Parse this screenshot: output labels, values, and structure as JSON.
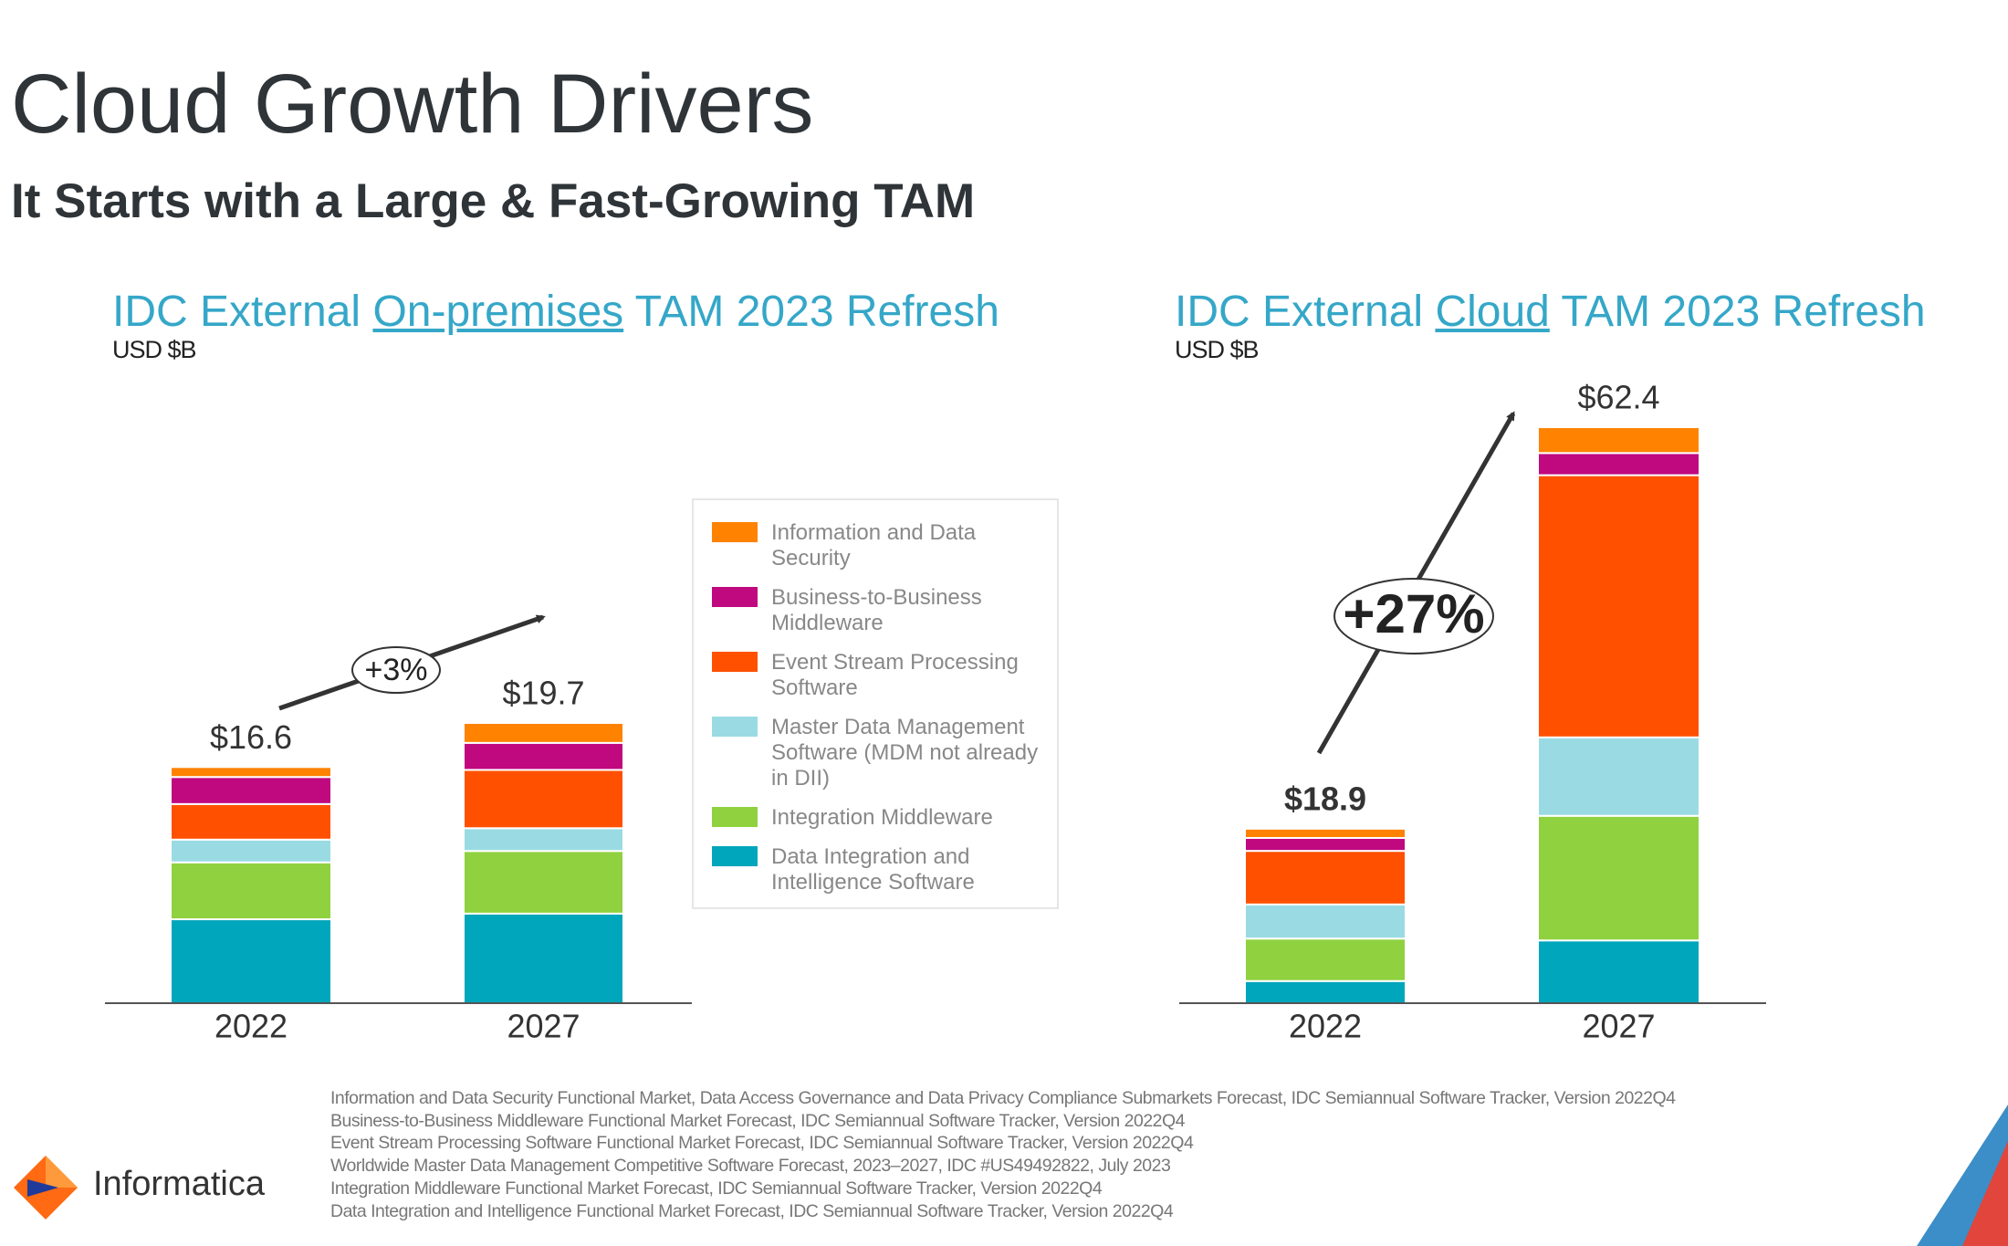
{
  "title": "Cloud Growth Drivers",
  "subtitle": "It Starts with a Large & Fast-Growing TAM",
  "logo": "Informatica",
  "footnotes": [
    "Information and Data Security Functional Market, Data Access Governance and Data Privacy Compliance Submarkets Forecast, IDC Semiannual Software Tracker, Version 2022Q4",
    "Business-to-Business Middleware Functional Market Forecast, IDC Semiannual Software Tracker, Version 2022Q4",
    "Event Stream Processing Software Functional Market Forecast, IDC Semiannual Software Tracker, Version 2022Q4",
    "Worldwide Master Data Management Competitive Software Forecast, 2023–2027, IDC #US49492822, July 2023",
    "Integration Middleware Functional Market Forecast, IDC Semiannual Software Tracker, Version 2022Q4",
    "Data Integration and Intelligence Functional Market Forecast, IDC Semiannual Software Tracker, Version 2022Q4"
  ],
  "chart_data": [
    {
      "type": "stacked_bar",
      "title_parts": [
        "IDC External",
        "On-premises",
        "TAM 2023 Refresh"
      ],
      "unit": "USD $B",
      "categories": [
        "2022",
        "2027"
      ],
      "totals": [
        16.6,
        19.7
      ],
      "total_labels": [
        "$16.6",
        "$19.7"
      ],
      "annotation": "+3%",
      "series": [
        {
          "name": "Data Integration and Intelligence Software",
          "color": "#00a6bb",
          "values": [
            5.9,
            6.3
          ]
        },
        {
          "name": "Integration Middleware",
          "color": "#8fd13f",
          "values": [
            4.0,
            4.4
          ]
        },
        {
          "name": "Master Data Management Software (MDM not already in DII)",
          "color": "#9adbe3",
          "values": [
            1.6,
            1.6
          ]
        },
        {
          "name": "Event Stream Processing Software",
          "color": "#ff5000",
          "values": [
            2.5,
            4.1
          ]
        },
        {
          "name": "Business-to-Business Middleware",
          "color": "#c0087f",
          "values": [
            1.9,
            1.9
          ]
        },
        {
          "name": "Information and Data Security",
          "color": "#ff8200",
          "values": [
            0.7,
            1.4
          ]
        }
      ]
    },
    {
      "type": "stacked_bar",
      "title_parts": [
        "IDC External",
        "Cloud",
        "TAM 2023 Refresh"
      ],
      "unit": "USD $B",
      "categories": [
        "2022",
        "2027"
      ],
      "totals": [
        18.9,
        62.4
      ],
      "total_labels": [
        "$18.9",
        "$62.4"
      ],
      "annotation": "+27%",
      "series": [
        {
          "color": "#00a6bb",
          "values": [
            2.4,
            6.8
          ]
        },
        {
          "color": "#8fd13f",
          "values": [
            4.6,
            13.5
          ]
        },
        {
          "color": "#9adbe3",
          "values": [
            3.7,
            8.5
          ]
        },
        {
          "color": "#ff5000",
          "values": [
            5.8,
            28.4
          ]
        },
        {
          "color": "#c0087f",
          "values": [
            1.4,
            2.4
          ]
        },
        {
          "color": "#ff8200",
          "values": [
            1.0,
            2.8
          ]
        }
      ]
    }
  ]
}
